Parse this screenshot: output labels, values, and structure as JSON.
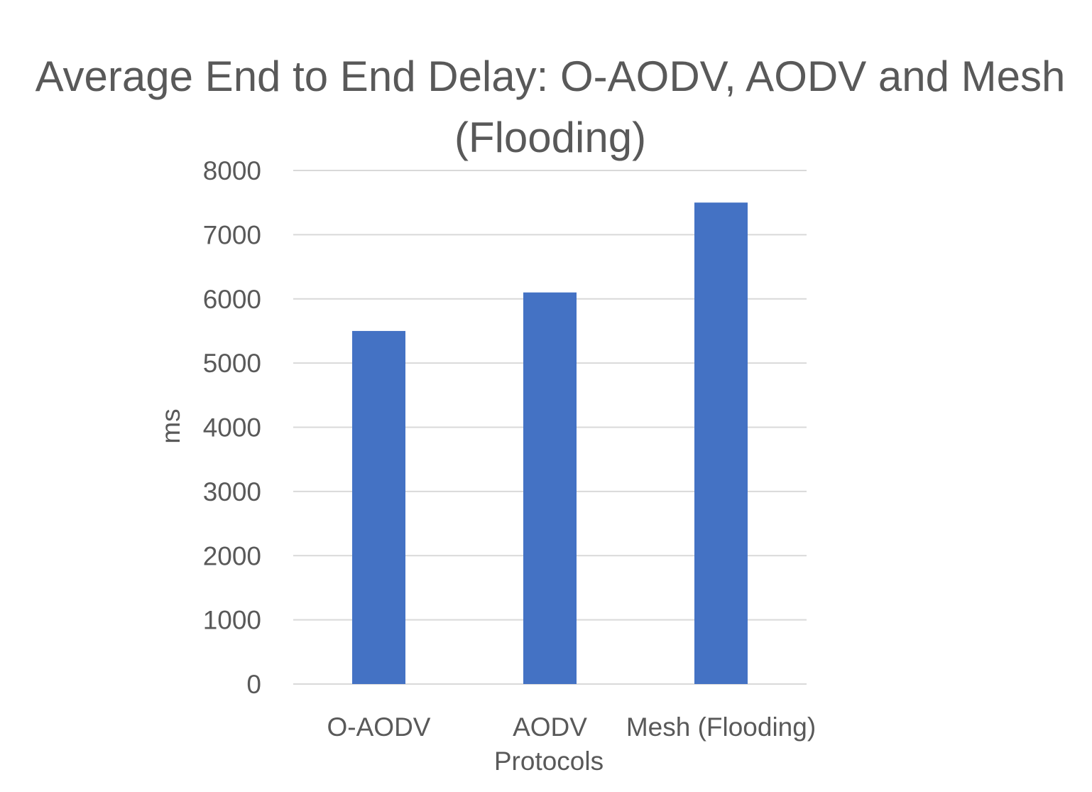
{
  "chart_data": {
    "type": "bar",
    "title_lines": [
      "Average End to End Delay: O-AODV, AODV and Mesh",
      "(Flooding)"
    ],
    "categories": [
      "O-AODV",
      "AODV",
      "Mesh (Flooding)"
    ],
    "values": [
      5500,
      6100,
      7500
    ],
    "xlabel": "Protocols",
    "ylabel": "ms",
    "ylim": [
      0,
      8000
    ],
    "yticks": [
      0,
      1000,
      2000,
      3000,
      4000,
      5000,
      6000,
      7000,
      8000
    ],
    "grid": true,
    "legend": "none",
    "bar_color": "#4472c4"
  }
}
